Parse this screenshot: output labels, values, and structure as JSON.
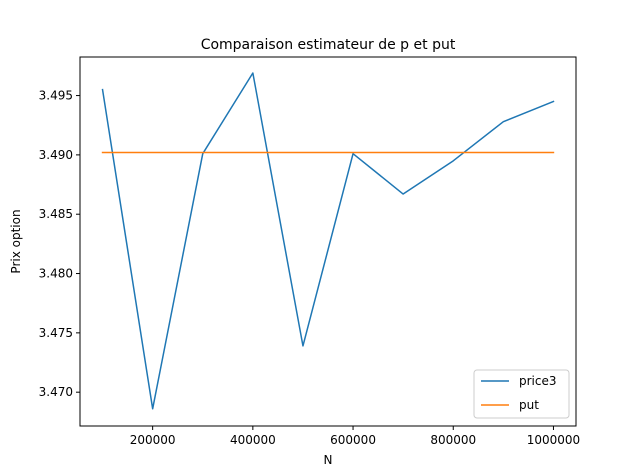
{
  "chart_data": {
    "type": "line",
    "title": "Comparaison estimateur de p et put",
    "xlabel": "N",
    "ylabel": "Prix option",
    "x": [
      100000,
      200000,
      300000,
      400000,
      500000,
      600000,
      700000,
      800000,
      900000,
      1000000
    ],
    "series": [
      {
        "name": "price3",
        "color": "#1f77b4",
        "values": [
          3.4955,
          3.4686,
          3.4901,
          3.4969,
          3.4739,
          3.4901,
          3.4867,
          3.4895,
          3.4928,
          3.4945
        ]
      },
      {
        "name": "put",
        "color": "#ff7f0e",
        "values": [
          3.4902,
          3.4902,
          3.4902,
          3.4902,
          3.4902,
          3.4902,
          3.4902,
          3.4902,
          3.4902,
          3.4902
        ]
      }
    ],
    "xlim": [
      55000,
      1045000
    ],
    "ylim": [
      3.46715,
      3.49825
    ],
    "xticks": [
      200000,
      400000,
      600000,
      800000,
      1000000
    ],
    "xtick_labels": [
      "200000",
      "400000",
      "600000",
      "800000",
      "1000000"
    ],
    "yticks": [
      3.47,
      3.475,
      3.48,
      3.485,
      3.49,
      3.495
    ],
    "ytick_labels": [
      "3.470",
      "3.475",
      "3.480",
      "3.485",
      "3.490",
      "3.495"
    ],
    "grid": false,
    "legend_position": "lower-right"
  }
}
